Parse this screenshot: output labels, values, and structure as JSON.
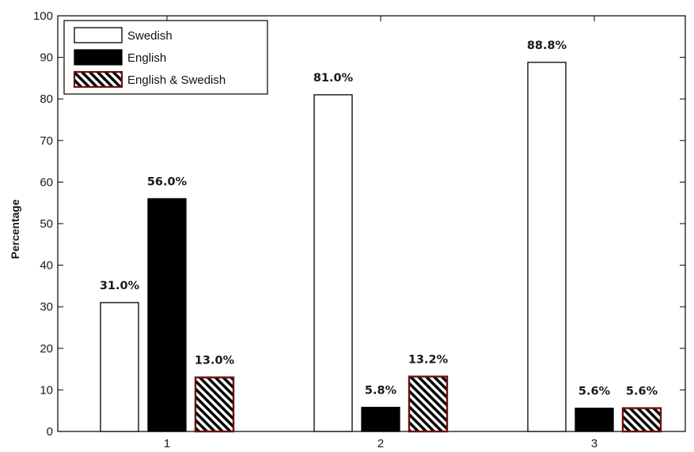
{
  "chart_data": {
    "type": "bar",
    "title": "",
    "xlabel": "",
    "ylabel": "Percentage",
    "ylim": [
      0,
      100
    ],
    "yticks": [
      0,
      10,
      20,
      30,
      40,
      50,
      60,
      70,
      80,
      90,
      100
    ],
    "categories": [
      "1",
      "2",
      "3"
    ],
    "grid": false,
    "legend_position": "top-left",
    "series": [
      {
        "name": "Swedish",
        "values": [
          31.0,
          81.0,
          88.8
        ],
        "labels": [
          "31.0%",
          "81.0%",
          "88.8%"
        ],
        "fill": "#ffffff",
        "stroke": "#000000",
        "pattern": "none"
      },
      {
        "name": "English",
        "values": [
          56.0,
          5.8,
          5.6
        ],
        "labels": [
          "56.0%",
          "5.8%",
          "5.6%"
        ],
        "fill": "#000000",
        "stroke": "#000000",
        "pattern": "none"
      },
      {
        "name": "English & Swedish",
        "values": [
          13.0,
          13.2,
          5.6
        ],
        "labels": [
          "13.0%",
          "13.2%",
          "5.6%"
        ],
        "fill": "#ffffff",
        "stroke": "#6b0f0f",
        "pattern": "diagonal-hatch"
      }
    ]
  }
}
